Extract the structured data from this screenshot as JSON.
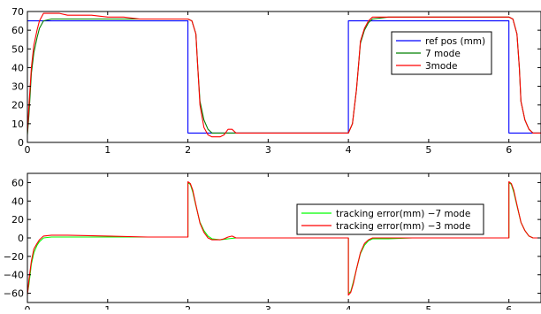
{
  "chart_data": [
    {
      "type": "line",
      "title": "",
      "xlabel": "",
      "ylabel": "",
      "xlim": [
        0,
        6.4
      ],
      "ylim": [
        0,
        70
      ],
      "grid": false,
      "legend_position": "right",
      "x_ticks": [
        "0",
        "1",
        "2",
        "3",
        "4",
        "5",
        "6"
      ],
      "y_ticks": [
        "0",
        "10",
        "20",
        "30",
        "40",
        "50",
        "60",
        "70"
      ],
      "legend": [
        "ref pos (mm)",
        "7 mode",
        "3mode"
      ],
      "series": [
        {
          "name": "ref pos (mm)",
          "color": "#0000ff",
          "x": [
            0,
            2.0,
            2.0,
            4.0,
            4.0,
            6.0,
            6.0,
            6.4
          ],
          "y": [
            65,
            65,
            5,
            5,
            65,
            65,
            5,
            5
          ]
        },
        {
          "name": "7 mode",
          "color": "#008000",
          "x": [
            0,
            0.02,
            0.05,
            0.08,
            0.12,
            0.15,
            0.2,
            0.3,
            0.5,
            0.6,
            0.8,
            1.0,
            1.2,
            1.5,
            2.0,
            2.05,
            2.1,
            2.12,
            2.15,
            2.2,
            2.25,
            2.3,
            2.4,
            2.5,
            2.6,
            2.8,
            3.0,
            3.5,
            4.0,
            4.05,
            4.1,
            4.13,
            4.15,
            4.2,
            4.25,
            4.3,
            4.5,
            5.0,
            5.5,
            6.0,
            6.05,
            6.1,
            6.13,
            6.15,
            6.2,
            6.25,
            6.3,
            6.4
          ],
          "y": [
            4,
            15,
            37,
            48,
            56,
            61,
            65,
            66,
            66,
            66,
            66,
            66,
            66,
            66,
            66,
            65,
            58,
            42,
            22,
            12,
            7,
            5,
            5,
            5,
            5,
            5,
            5,
            5,
            5,
            10,
            28,
            43,
            53,
            60,
            64,
            66,
            67,
            67,
            67,
            67,
            66,
            58,
            40,
            22,
            12,
            7,
            5,
            5
          ]
        },
        {
          "name": "3mode",
          "color": "#ff0000",
          "x": [
            0,
            0.02,
            0.05,
            0.08,
            0.12,
            0.15,
            0.2,
            0.4,
            0.5,
            0.8,
            1.0,
            1.2,
            1.4,
            1.5,
            2.0,
            2.05,
            2.1,
            2.12,
            2.15,
            2.2,
            2.25,
            2.3,
            2.4,
            2.45,
            2.5,
            2.55,
            2.6,
            2.8,
            3.0,
            3.5,
            4.0,
            4.05,
            4.1,
            4.13,
            4.15,
            4.2,
            4.25,
            4.3,
            4.5,
            5.0,
            5.5,
            6.0,
            6.05,
            6.1,
            6.13,
            6.15,
            6.2,
            6.25,
            6.3,
            6.4
          ],
          "y": [
            5,
            20,
            40,
            52,
            60,
            65,
            69,
            69,
            68,
            68,
            67,
            67,
            66,
            66,
            66,
            65,
            58,
            42,
            20,
            8,
            4,
            3,
            3,
            4,
            7,
            7,
            5,
            5,
            5,
            5,
            5,
            10,
            28,
            43,
            54,
            61,
            65,
            67,
            67,
            67,
            67,
            67,
            66,
            58,
            40,
            22,
            12,
            7,
            5,
            5
          ]
        }
      ]
    },
    {
      "type": "line",
      "title": "",
      "xlabel": "",
      "ylabel": "",
      "xlim": [
        0,
        6.4
      ],
      "ylim": [
        -70,
        70
      ],
      "grid": false,
      "legend_position": "top-right",
      "x_ticks": [
        "0",
        "1",
        "2",
        "3",
        "4",
        "5",
        "6"
      ],
      "y_ticks": [
        "−60",
        "−40",
        "−20",
        "0",
        "20",
        "40",
        "60"
      ],
      "legend": [
        "tracking error(mm) −7 mode",
        "tracking error(mm) −3 mode"
      ],
      "series": [
        {
          "name": "tracking error(mm) −7 mode",
          "color": "#00ff00",
          "x": [
            0,
            0.02,
            0.05,
            0.08,
            0.12,
            0.15,
            0.2,
            0.3,
            0.5,
            1.0,
            1.5,
            2.0,
            2.0,
            2.03,
            2.06,
            2.1,
            2.15,
            2.2,
            2.25,
            2.3,
            2.4,
            2.5,
            2.6,
            2.8,
            3.0,
            3.5,
            4.0,
            4.0,
            4.03,
            4.06,
            4.1,
            4.15,
            4.2,
            4.25,
            4.3,
            4.5,
            4.8,
            5.0,
            5.5,
            6.0,
            6.0,
            6.03,
            6.06,
            6.1,
            6.15,
            6.2,
            6.25,
            6.3,
            6.4
          ],
          "y": [
            -60,
            -50,
            -28,
            -16,
            -8,
            -4,
            0,
            1,
            1,
            1,
            1,
            1,
            60,
            58,
            50,
            35,
            17,
            8,
            2,
            -1,
            -2,
            -1,
            0,
            0,
            0,
            0,
            0,
            -60,
            -58,
            -48,
            -34,
            -17,
            -8,
            -3,
            -1,
            -1,
            0,
            0,
            0,
            0,
            60,
            58,
            50,
            35,
            17,
            8,
            2,
            0,
            0
          ]
        },
        {
          "name": "tracking error(mm) −3 mode",
          "color": "#ff0000",
          "x": [
            0,
            0.02,
            0.05,
            0.08,
            0.12,
            0.15,
            0.2,
            0.3,
            0.5,
            1.0,
            1.5,
            2.0,
            2.0,
            2.03,
            2.06,
            2.1,
            2.15,
            2.2,
            2.25,
            2.3,
            2.4,
            2.45,
            2.5,
            2.55,
            2.6,
            2.8,
            3.0,
            3.5,
            4.0,
            4.0,
            4.03,
            4.06,
            4.1,
            4.15,
            4.2,
            4.25,
            4.3,
            4.5,
            5.0,
            5.5,
            6.0,
            6.0,
            6.03,
            6.06,
            6.1,
            6.15,
            6.2,
            6.25,
            6.3,
            6.4
          ],
          "y": [
            -62,
            -45,
            -25,
            -12,
            -6,
            -2,
            2,
            3,
            3,
            2,
            1,
            1,
            61,
            59,
            52,
            36,
            16,
            6,
            0,
            -2,
            -2,
            -1,
            1,
            2,
            0,
            0,
            0,
            0,
            0,
            -62,
            -59,
            -50,
            -34,
            -16,
            -6,
            -2,
            0,
            0,
            0,
            0,
            0,
            61,
            59,
            52,
            36,
            17,
            8,
            2,
            0,
            0
          ]
        }
      ]
    }
  ]
}
